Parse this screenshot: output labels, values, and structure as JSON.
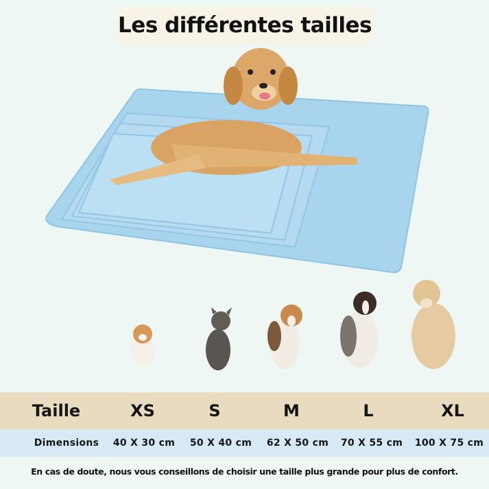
{
  "title": "Les différentes tailles",
  "table": {
    "header_label": "Taille",
    "sizes": [
      "XS",
      "S",
      "M",
      "L",
      "XL"
    ],
    "dimensions_label": "Dimensions",
    "dimensions": [
      "40 X 30 cm",
      "50 X 40 cm",
      "62 X 50 cm",
      "70 X 55 cm",
      "100 X 75 cm"
    ]
  },
  "note": "En cas de doute, nous vous conseillons de choisir une taille plus grande pour plus de confort.",
  "colors": {
    "mat": "#a9d4ee",
    "size_row": "#e8dbbf",
    "dimension_row": "#d8e9f6",
    "background": "#eef7f4"
  }
}
